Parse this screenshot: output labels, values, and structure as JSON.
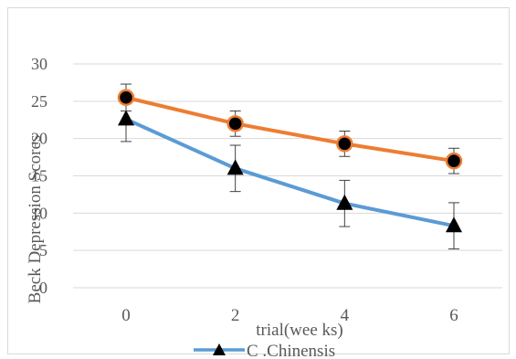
{
  "chart_data": {
    "type": "line",
    "title": "",
    "xlabel": "trial(wee ks)",
    "ylabel": "Beck Depression Scores",
    "x": [
      0,
      2,
      4,
      6
    ],
    "x_ticks": [
      "0",
      "2",
      "4",
      "6"
    ],
    "y_ticks": [
      "0",
      "5",
      "10",
      "15",
      "20",
      "25",
      "30"
    ],
    "y_ticks_display": [
      "0",
      "5",
      "10",
      "15",
      "20",
      "25",
      "30"
    ],
    "ylim": [
      0,
      30
    ],
    "grid": true,
    "legend_position": "bottom",
    "series": [
      {
        "name": "",
        "color": "#ed7d31",
        "marker": "circle",
        "values": [
          25.5,
          22.0,
          19.3,
          17.0
        ],
        "error": [
          1.8,
          1.7,
          1.7,
          1.7
        ]
      },
      {
        "name": "C .Chinensis",
        "color": "#5b9bd5",
        "marker": "triangle",
        "values": [
          22.6,
          16.0,
          11.3,
          8.3
        ],
        "error": [
          3.0,
          3.1,
          3.1,
          3.1
        ]
      }
    ]
  }
}
